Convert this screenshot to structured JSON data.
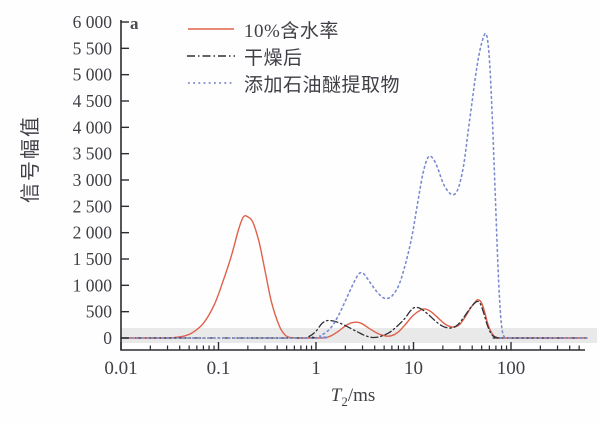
{
  "figure": {
    "panel_label": "a"
  },
  "axes": {
    "y": {
      "title": "信号幅值",
      "min": 0,
      "max": 6000,
      "tick_step": 500,
      "tick_labels": [
        "0",
        "500",
        "1 000",
        "1 500",
        "2 000",
        "2 500",
        "3 000",
        "3 500",
        "4 000",
        "4 500",
        "5 000",
        "5 500",
        "6 000"
      ]
    },
    "x": {
      "title_main": "T",
      "title_sub": "2",
      "title_unit": "/ms",
      "scale": "log",
      "min": 0.01,
      "max": 600,
      "decade_labels": [
        "0.01",
        "0.1",
        "1",
        "10",
        "100"
      ],
      "decade_values": [
        0.01,
        0.1,
        1,
        10,
        100
      ]
    }
  },
  "legend": {
    "items": [
      {
        "label": "10%含水率",
        "style": "solid",
        "color": "#e0604a"
      },
      {
        "label": "干燥后",
        "style": "dashdot",
        "color": "#2e2e36"
      },
      {
        "label": "添加石油醚提取物",
        "style": "dotted",
        "color": "#7c8ad0"
      }
    ]
  },
  "chart_data": {
    "type": "line",
    "title": "",
    "xlabel": "T2/ms",
    "ylabel": "信号幅值",
    "x_scale": "log",
    "xlim": [
      0.01,
      600
    ],
    "ylim": [
      0,
      6000
    ],
    "grid": false,
    "legend_position": "top-left-inside",
    "background_band": {
      "value_from": -95,
      "value_to": 190,
      "color": "#e9e9e9"
    },
    "series": [
      {
        "name": "10%含水率",
        "style": "solid",
        "color": "#e0604a",
        "width": 1.4,
        "points": [
          [
            0.01,
            0
          ],
          [
            0.028,
            0
          ],
          [
            0.035,
            8
          ],
          [
            0.045,
            40
          ],
          [
            0.055,
            110
          ],
          [
            0.07,
            280
          ],
          [
            0.09,
            620
          ],
          [
            0.11,
            1050
          ],
          [
            0.135,
            1550
          ],
          [
            0.16,
            2050
          ],
          [
            0.18,
            2300
          ],
          [
            0.2,
            2300
          ],
          [
            0.225,
            2200
          ],
          [
            0.26,
            1830
          ],
          [
            0.3,
            1280
          ],
          [
            0.35,
            680
          ],
          [
            0.42,
            230
          ],
          [
            0.48,
            60
          ],
          [
            0.55,
            8
          ],
          [
            0.65,
            0
          ],
          [
            1.15,
            0
          ],
          [
            1.4,
            35
          ],
          [
            1.7,
            130
          ],
          [
            2.1,
            255
          ],
          [
            2.5,
            300
          ],
          [
            2.9,
            280
          ],
          [
            3.5,
            185
          ],
          [
            4.3,
            85
          ],
          [
            5.2,
            38
          ],
          [
            6,
            45
          ],
          [
            7,
            115
          ],
          [
            8.5,
            285
          ],
          [
            10,
            435
          ],
          [
            12,
            535
          ],
          [
            13.2,
            550
          ],
          [
            15,
            505
          ],
          [
            18,
            375
          ],
          [
            21,
            265
          ],
          [
            24,
            215
          ],
          [
            27,
            212
          ],
          [
            30,
            262
          ],
          [
            34,
            405
          ],
          [
            39,
            585
          ],
          [
            44,
            705
          ],
          [
            46.5,
            725
          ],
          [
            50,
            665
          ],
          [
            54,
            475
          ],
          [
            58,
            262
          ],
          [
            63,
            105
          ],
          [
            68,
            28
          ],
          [
            74,
            4
          ],
          [
            80,
            0
          ],
          [
            600,
            0
          ]
        ]
      },
      {
        "name": "干燥后",
        "style": "dashdot",
        "color": "#2e2e36",
        "width": 1.3,
        "points": [
          [
            0.01,
            0
          ],
          [
            0.7,
            0
          ],
          [
            0.85,
            30
          ],
          [
            1,
            130
          ],
          [
            1.15,
            275
          ],
          [
            1.3,
            330
          ],
          [
            1.5,
            322
          ],
          [
            1.8,
            275
          ],
          [
            2.2,
            195
          ],
          [
            2.7,
            110
          ],
          [
            3.2,
            45
          ],
          [
            3.8,
            10
          ],
          [
            4.5,
            25
          ],
          [
            5.5,
            92
          ],
          [
            6.5,
            192
          ],
          [
            8,
            355
          ],
          [
            9.3,
            515
          ],
          [
            10.3,
            580
          ],
          [
            11.8,
            558
          ],
          [
            13.8,
            468
          ],
          [
            16.5,
            335
          ],
          [
            19.5,
            232
          ],
          [
            23,
            190
          ],
          [
            26,
            205
          ],
          [
            29,
            268
          ],
          [
            33,
            400
          ],
          [
            38,
            560
          ],
          [
            42.5,
            665
          ],
          [
            45.5,
            695
          ],
          [
            48.5,
            648
          ],
          [
            52.5,
            472
          ],
          [
            56.5,
            272
          ],
          [
            61,
            115
          ],
          [
            66,
            32
          ],
          [
            72,
            5
          ],
          [
            78,
            0
          ],
          [
            600,
            0
          ]
        ]
      },
      {
        "name": "添加石油醚提取物",
        "style": "dotted",
        "color": "#7c8ad0",
        "width": 1.6,
        "points": [
          [
            0.01,
            0
          ],
          [
            0.9,
            0
          ],
          [
            1.1,
            40
          ],
          [
            1.4,
            180
          ],
          [
            1.7,
            430
          ],
          [
            2.1,
            790
          ],
          [
            2.5,
            1090
          ],
          [
            2.8,
            1230
          ],
          [
            3.1,
            1215
          ],
          [
            3.6,
            1050
          ],
          [
            4.2,
            880
          ],
          [
            4.8,
            775
          ],
          [
            5.3,
            750
          ],
          [
            6,
            795
          ],
          [
            7,
            985
          ],
          [
            8,
            1310
          ],
          [
            9.5,
            1870
          ],
          [
            11,
            2550
          ],
          [
            12.5,
            3120
          ],
          [
            14,
            3420
          ],
          [
            15.5,
            3430
          ],
          [
            17.5,
            3250
          ],
          [
            20,
            2950
          ],
          [
            22.5,
            2790
          ],
          [
            25,
            2720
          ],
          [
            27.5,
            2765
          ],
          [
            30,
            2950
          ],
          [
            33,
            3330
          ],
          [
            36,
            3860
          ],
          [
            40,
            4500
          ],
          [
            44,
            5060
          ],
          [
            48,
            5460
          ],
          [
            52,
            5700
          ],
          [
            55,
            5780
          ],
          [
            58,
            5610
          ],
          [
            61,
            5080
          ],
          [
            64,
            4280
          ],
          [
            67,
            3340
          ],
          [
            70,
            2390
          ],
          [
            73,
            1490
          ],
          [
            76,
            790
          ],
          [
            79,
            340
          ],
          [
            82,
            105
          ],
          [
            86,
            12
          ],
          [
            90,
            0
          ],
          [
            600,
            0
          ]
        ]
      }
    ]
  }
}
